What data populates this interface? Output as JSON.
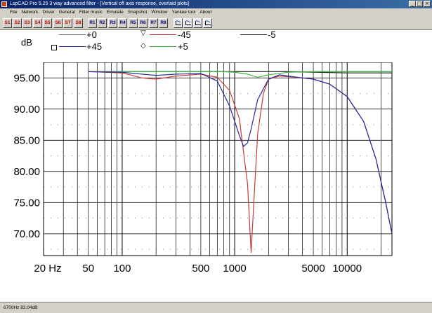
{
  "window": {
    "title": "LspCAD Pro 5.25 3 way advanced filter - [Vertical off axis response, overlaid plots]",
    "controls": [
      "_",
      "□",
      "×"
    ]
  },
  "menu": [
    "File",
    "Network",
    "Driver",
    "General",
    "Filter music",
    "Emulate",
    "Snapshot",
    "Window",
    "Yankee tool",
    "About"
  ],
  "toolbar": {
    "s_buttons": [
      "S1",
      "S2",
      "S3",
      "S4",
      "S5",
      "S6",
      "S7",
      "S8"
    ],
    "r_buttons": [
      "R1",
      "R2",
      "R3",
      "R4",
      "R5",
      "R6",
      "R7",
      "R8"
    ],
    "tool_icons": [
      "plot-tool-1-icon",
      "plot-tool-2-icon",
      "plot-tool-3-icon",
      "plot-tool-4-icon"
    ]
  },
  "legend": {
    "unit": "dB",
    "entries": [
      {
        "label": "+0",
        "color": "#707070",
        "marker": ""
      },
      {
        "label": "-45",
        "color": "#c83c3c",
        "marker": "▽"
      },
      {
        "label": "-5",
        "color": "#303030",
        "marker": ""
      },
      {
        "label": "+45",
        "color": "#2828a0",
        "marker": "□"
      },
      {
        "label": "+5",
        "color": "#3cb43c",
        "marker": "◇"
      }
    ]
  },
  "chart_data": {
    "type": "line",
    "title": "",
    "xlabel": "",
    "ylabel": "dB",
    "xscale": "log",
    "xlim": [
      20,
      25000
    ],
    "ylim": [
      66.5,
      97.5
    ],
    "grid": true,
    "x_tick_labels": [
      "20 Hz",
      "50",
      "100",
      "500",
      "1000",
      "5000",
      "10000"
    ],
    "x_tick_values": [
      20,
      50,
      100,
      500,
      1000,
      5000,
      10000
    ],
    "y_tick_labels": [
      "95.00",
      "90.00",
      "85.00",
      "80.00",
      "75.00",
      "70.00"
    ],
    "y_tick_values": [
      95,
      90,
      85,
      80,
      75,
      70
    ],
    "series": [
      {
        "name": "+0",
        "color": "#707070",
        "x": [
          50,
          100,
          200,
          500,
          1000,
          1500,
          2000,
          3000,
          5000,
          10000,
          25000
        ],
        "y": [
          96.0,
          96.0,
          96.0,
          96.0,
          96.0,
          96.0,
          96.0,
          96.0,
          96.0,
          96.0,
          96.0
        ]
      },
      {
        "name": "-5",
        "color": "#303030",
        "x": [
          50,
          100,
          200,
          500,
          1000,
          1500,
          2000,
          3000,
          5000,
          10000,
          25000
        ],
        "y": [
          96.0,
          96.0,
          96.0,
          96.0,
          96.0,
          96.0,
          96.0,
          96.0,
          95.9,
          95.8,
          95.8
        ]
      },
      {
        "name": "+5",
        "color": "#3cb43c",
        "x": [
          50,
          100,
          200,
          500,
          800,
          1000,
          1300,
          1600,
          2000,
          3000,
          5000,
          10000,
          25000
        ],
        "y": [
          96.0,
          96.0,
          96.0,
          96.0,
          96.0,
          95.9,
          95.6,
          95.1,
          95.5,
          95.9,
          96.0,
          96.0,
          96.0
        ]
      },
      {
        "name": "-45",
        "color": "#c83c3c",
        "x": [
          50,
          100,
          150,
          200,
          300,
          500,
          700,
          900,
          1100,
          1300,
          1400,
          1500,
          1600,
          1800,
          2000,
          2500,
          3000,
          4000,
          5000,
          7000,
          10000,
          14000,
          18000,
          22000,
          25000
        ],
        "y": [
          96.0,
          95.8,
          95.0,
          94.8,
          95.3,
          95.6,
          95.1,
          93.0,
          88.5,
          78.0,
          67.0,
          77.0,
          86.0,
          92.5,
          94.8,
          95.3,
          95.2,
          95.0,
          94.8,
          94.0,
          92.0,
          88.0,
          82.0,
          75.0,
          70.0
        ]
      },
      {
        "name": "+45",
        "color": "#2828a0",
        "x": [
          50,
          100,
          150,
          200,
          300,
          500,
          700,
          900,
          1100,
          1200,
          1300,
          1400,
          1600,
          2000,
          2500,
          3000,
          4000,
          5000,
          7000,
          10000,
          14000,
          18000,
          22000,
          25000
        ],
        "y": [
          96.0,
          95.9,
          95.6,
          95.4,
          95.6,
          95.7,
          94.5,
          90.5,
          85.8,
          84.0,
          84.6,
          86.8,
          91.5,
          94.8,
          95.5,
          95.3,
          95.0,
          94.8,
          94.0,
          92.0,
          88.0,
          82.0,
          75.0,
          70.0
        ]
      }
    ]
  },
  "status": "6700Hz  82.04dB"
}
